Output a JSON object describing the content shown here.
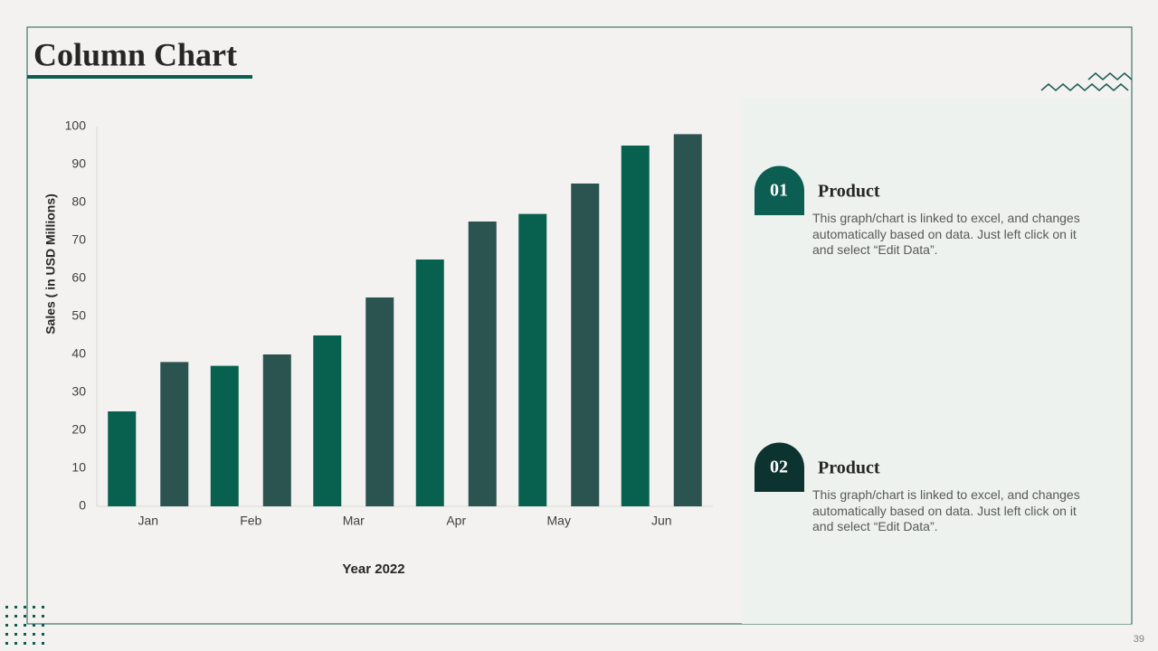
{
  "chart_data": {
    "type": "bar",
    "title": "Column Chart",
    "categories": [
      "Jan",
      "Feb",
      "Mar",
      "Apr",
      "May",
      "Jun"
    ],
    "series": [
      {
        "color": "#08614f",
        "values": [
          25,
          37,
          45,
          65,
          77,
          95
        ]
      },
      {
        "color": "#2b5350",
        "values": [
          38,
          40,
          55,
          75,
          85,
          98
        ]
      }
    ],
    "ylim": [
      0,
      100
    ],
    "yticks": [
      0,
      10,
      20,
      30,
      40,
      50,
      60,
      70,
      80,
      90,
      100
    ],
    "y_label": "Sales  ( in USD Millions)",
    "x_label": "Year 2022",
    "grid": false
  },
  "panel": {
    "items": [
      {
        "number": "01",
        "heading": "Product",
        "text": "This graph/chart is linked to excel, and changes automatically based on data. Just left click on it and select “Edit Data”."
      },
      {
        "number": "02",
        "heading": "Product",
        "text": "This graph/chart is linked to excel, and changes automatically based on data. Just left click on it and select “Edit Data”."
      }
    ]
  },
  "page_number": "39"
}
